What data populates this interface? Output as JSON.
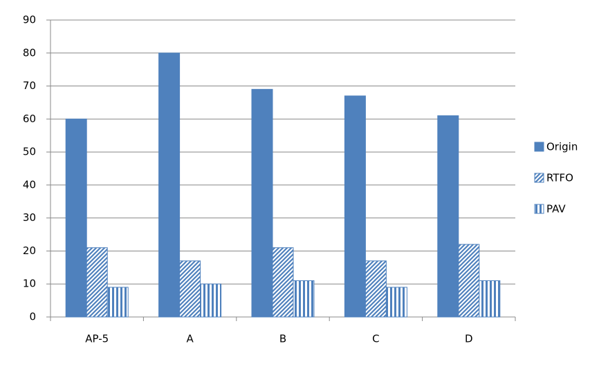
{
  "chart_data": {
    "type": "bar",
    "categories": [
      "AP-5",
      "A",
      "B",
      "C",
      "D"
    ],
    "series": [
      {
        "name": "Origin",
        "color": "#4f81bd",
        "pattern": "solid",
        "values": [
          60,
          80,
          69,
          67,
          61
        ]
      },
      {
        "name": "RTFO",
        "color": "#4f81bd",
        "pattern": "diagonal",
        "values": [
          21,
          17,
          21,
          17,
          22
        ]
      },
      {
        "name": "PAV",
        "color": "#4f81bd",
        "pattern": "vertical",
        "values": [
          9,
          10,
          11,
          9,
          11
        ]
      }
    ],
    "ylim": [
      0,
      90
    ],
    "yticks": [
      0,
      10,
      20,
      30,
      40,
      50,
      60,
      70,
      80,
      90
    ],
    "grid": true,
    "legend": "right"
  }
}
